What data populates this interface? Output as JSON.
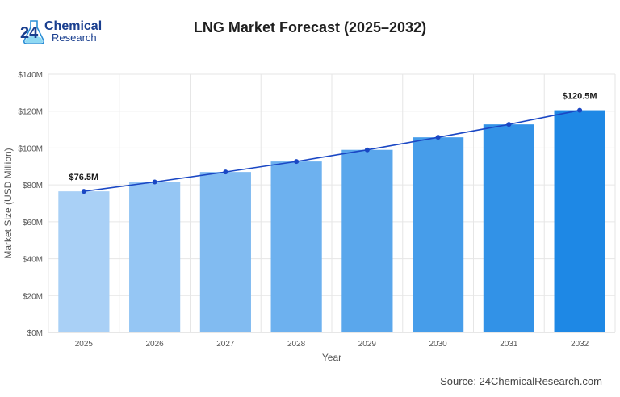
{
  "logo": {
    "number": "24",
    "line1": "Chemical",
    "line2": "Research"
  },
  "title": "LNG Market Forecast (2025–2032)",
  "source": "Source: 24ChemicalResearch.com",
  "chart_data": {
    "type": "bar",
    "categories": [
      "2025",
      "2026",
      "2027",
      "2028",
      "2029",
      "2030",
      "2031",
      "2032"
    ],
    "values": [
      76.5,
      81.6,
      87.0,
      92.7,
      99.0,
      105.8,
      112.8,
      120.5
    ],
    "line_values": [
      76.5,
      81.6,
      87.0,
      92.7,
      99.0,
      105.8,
      112.8,
      120.5
    ],
    "title": "LNG Market Forecast (2025–2032)",
    "xlabel": "Year",
    "ylabel": "Market Size (USD Million)",
    "ylim": [
      0,
      140
    ],
    "yticks": [
      0,
      20,
      40,
      60,
      80,
      100,
      120,
      140
    ],
    "ytick_labels": [
      "$0M",
      "$20M",
      "$40M",
      "$60M",
      "$80M",
      "$100M",
      "$120M",
      "$140M"
    ],
    "data_labels": [
      {
        "index": 0,
        "text": "$76.5M"
      },
      {
        "index": 7,
        "text": "$120.5M"
      }
    ],
    "grid": true,
    "legend": "none",
    "colors": {
      "bar_start": "#a9d0f6",
      "bar_end": "#1e88e5",
      "line": "#1a47c4",
      "grid": "#e6e6e6"
    }
  }
}
